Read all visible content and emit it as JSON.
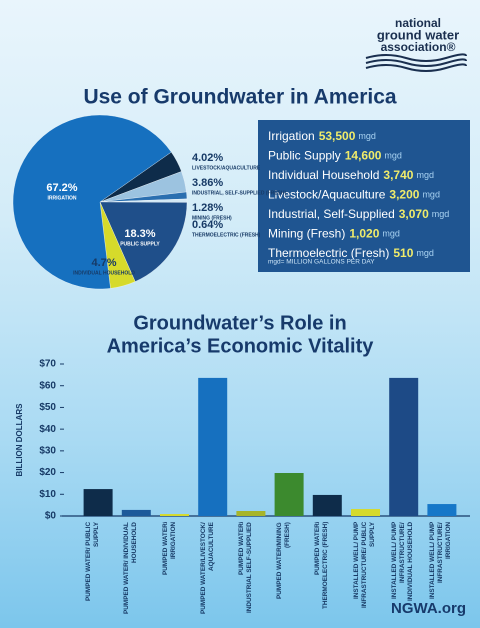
{
  "logo": [
    "national",
    "ground water",
    "association®"
  ],
  "chart_data": [
    {
      "type": "pie",
      "title": "Use of Groundwater in America",
      "categories": [
        "LIVESTOCK/AQUACULTURE",
        "INDUSTRIAL, SELF-SUPPLIED (FRESH)",
        "MINING (FRESH)",
        "THERMOELECTRIC (FRESH)",
        "PUBLIC SUPPLY",
        "INDIVIDUAL HOUSEHOLD",
        "IRRIGATION"
      ],
      "values": [
        4.02,
        3.86,
        1.28,
        0.64,
        18.3,
        4.7,
        67.2
      ],
      "value_labels": [
        "4.02%",
        "3.86%",
        "1.28%",
        "0.64%",
        "18.3%",
        "4.7%",
        "67.2%"
      ],
      "colors": [
        "#0e2c4a",
        "#9cc3e0",
        "#2a6fb0",
        "#d3e8f5",
        "#1f4f8a",
        "#d6da2b",
        "#1670bf"
      ]
    },
    {
      "type": "bar",
      "title": [
        "Groundwater’s Role in",
        "America’s Economic Vitality"
      ],
      "ylabel": "BILLION DOLLARS",
      "categories": [
        "PUMPED WATER/ PUBLIC SUPPLY",
        "PUMPED WATER/ INDIVIDUAL HOUSEHOLD",
        "PUMPED WATER/ IRRIGATION",
        "PUMPED WATER/LIVESTOCK/ AQUACULTURE",
        "PUMPED WATER/ INDUSTRIAL SELF-SUPPLIED",
        "PUMPED WATER/MINING (FRESH)",
        "PUMPED WATER/ THERMOELECTRIC (FRESH)",
        "INSTALLED WELL/ PUMP INFRASTRUCTURE/ PUBLIC SUPPLY",
        "INSTALLED WELL/ PUMP INFRASTRUCTURE/ INDIVIDUAL HOUSEHOLD",
        "INSTALLED WELL/ PUMP INFRASTRUCTURE/ IRRIGATION"
      ],
      "values": [
        12.4,
        2.8,
        0.9,
        63.6,
        2.3,
        19.8,
        9.7,
        3.2,
        63.6,
        5.5
      ],
      "colors": [
        "#0e2c4a",
        "#1d5a9a",
        "#d6da2b",
        "#1670bf",
        "#a7b52a",
        "#3c8a2e",
        "#0e2c4a",
        "#d6da2b",
        "#1d4a86",
        "#1677c8"
      ],
      "ylim": [
        0,
        70
      ],
      "yticks": [
        {
          "value": 0,
          "label": "$0"
        },
        {
          "value": 10,
          "label": "$10"
        },
        {
          "value": 20,
          "label": "$20"
        },
        {
          "value": 30,
          "label": "$30"
        },
        {
          "value": 40,
          "label": "$40"
        },
        {
          "value": 50,
          "label": "$50"
        },
        {
          "value": 60,
          "label": "$60"
        },
        {
          "value": 70,
          "label": "$70"
        }
      ]
    }
  ],
  "usage_table": {
    "rows": [
      {
        "label": "Irrigation",
        "value": "53,500",
        "unit": "mgd"
      },
      {
        "label": "Public Supply",
        "value": "14,600",
        "unit": "mgd"
      },
      {
        "label": "Individual Household",
        "value": "3,740",
        "unit": "mgd"
      },
      {
        "label": "Livestock/Aquaculture",
        "value": "3,200",
        "unit": "mgd"
      },
      {
        "label": "Industrial, Self-Supplied",
        "value": "3,070",
        "unit": "mgd"
      },
      {
        "label": "Mining (Fresh)",
        "value": "1,020",
        "unit": "mgd"
      },
      {
        "label": "Thermoelectric (Fresh)",
        "value": "510",
        "unit": "mgd"
      }
    ],
    "note": "mgd= MILLION GALLONS PER DAY"
  },
  "footer": "NGWA.org"
}
